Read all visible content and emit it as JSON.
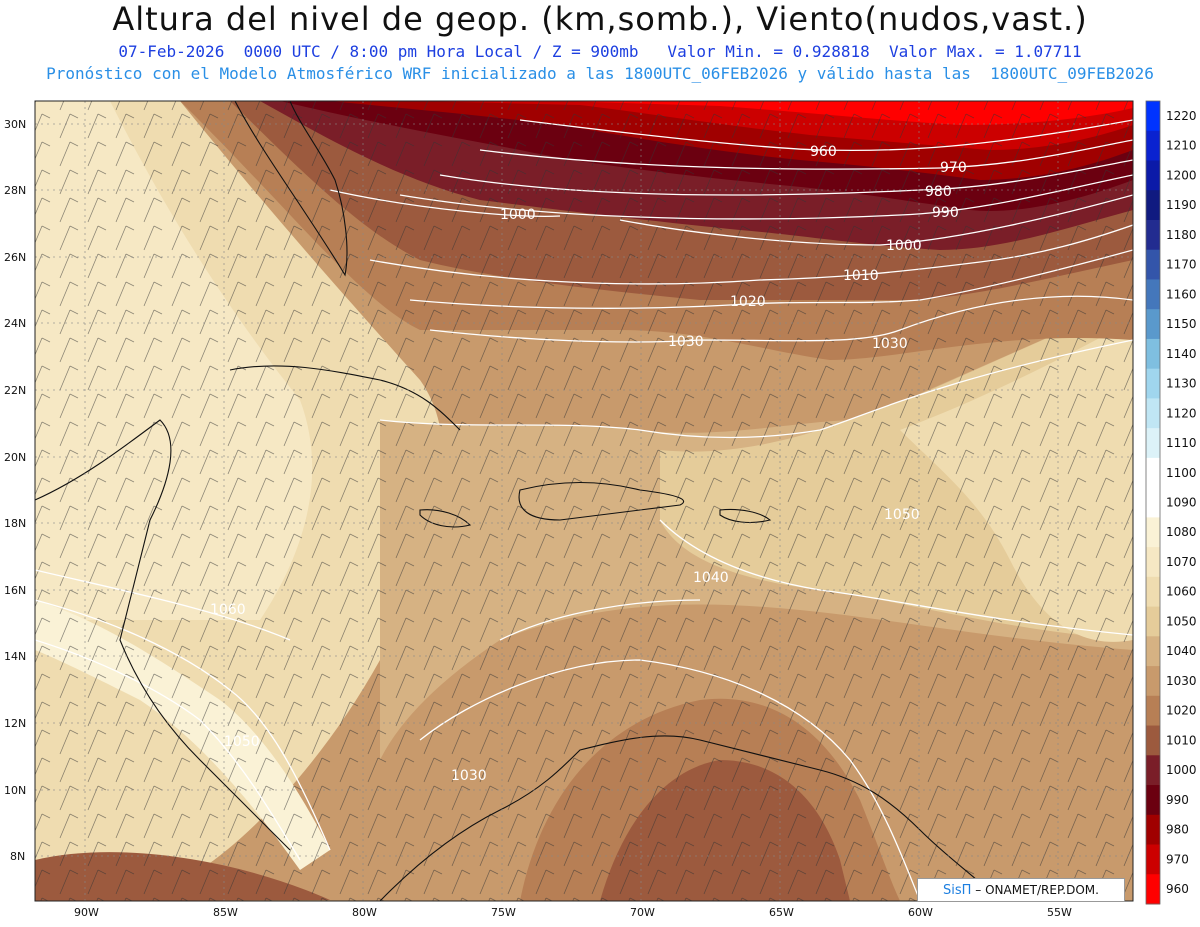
{
  "header": {
    "title": "Altura del nivel de geop. (km,somb.), Viento(nudos,vast.)",
    "subtitle_line1": "07-Feb-2026  0000 UTC / 8:00 pm Hora Local / Z = 900mb   Valor Min. = 0.928818  Valor Max. = 1.07711",
    "subtitle_line2": "Pronóstico con el Modelo Atmosférico WRF inicializado a las 1800UTC_06FEB2026 y válido hasta las  1800UTC_09FEB2026"
  },
  "map": {
    "lat_labels": [
      "30N",
      "28N",
      "26N",
      "24N",
      "22N",
      "20N",
      "18N",
      "16N",
      "14N",
      "12N",
      "10N",
      "8N"
    ],
    "lon_labels": [
      "90W",
      "85W",
      "80W",
      "75W",
      "70W",
      "65W",
      "60W",
      "55W"
    ],
    "contour_labels": [
      "960",
      "970",
      "980",
      "990",
      "1000",
      "1000",
      "1010",
      "1020",
      "1030",
      "1030",
      "1040",
      "1050",
      "1060",
      "1050",
      "1030"
    ]
  },
  "colorbar": {
    "levels": [
      "1220",
      "1210",
      "1200",
      "1190",
      "1180",
      "1170",
      "1160",
      "1150",
      "1140",
      "1130",
      "1120",
      "1110",
      "1100",
      "1090",
      "1080",
      "1070",
      "1060",
      "1050",
      "1040",
      "1030",
      "1020",
      "1010",
      "1000",
      "990",
      "980",
      "970",
      "960"
    ],
    "colors": [
      "#0033ff",
      "#0a22d0",
      "#0b1aa8",
      "#101a80",
      "#222c90",
      "#3355aa",
      "#4477bb",
      "#5a99cc",
      "#7fbfe0",
      "#a0d6ee",
      "#c0e6f4",
      "#dcf2f8",
      "#ffffff",
      "#ffffff",
      "#faf2d6",
      "#f6e8c4",
      "#efdcb0",
      "#e5cc9a",
      "#d6b283",
      "#c89a6c",
      "#b77f55",
      "#9c5a3e",
      "#7a1e28",
      "#6b0010",
      "#a00000",
      "#cc0000",
      "#ff0000"
    ]
  },
  "credit": {
    "brand": "SisΠ",
    "text": "– ONAMET/REP.DOM."
  }
}
